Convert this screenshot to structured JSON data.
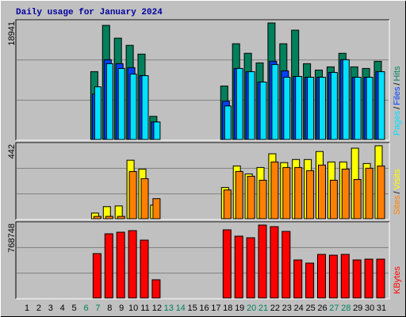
{
  "chart_data": [
    {
      "type": "bar",
      "title": "Daily usage for January 2024",
      "ylim": [
        0,
        18941
      ],
      "yticks": [
        18941
      ],
      "separator": "/",
      "series": [
        {
          "name": "Hits",
          "color": "#00805c",
          "values": [
            0,
            0,
            0,
            0,
            0,
            0,
            10790,
            18064,
            16056,
            14927,
            13547,
            3763,
            0,
            0,
            0,
            0,
            0,
            8530,
            15178,
            13673,
            12168,
            18440,
            15178,
            17311,
            12042,
            11039,
            11540,
            13673,
            11540,
            11290,
            12418
          ]
        },
        {
          "name": "Files",
          "color": "#0040ff",
          "values": [
            0,
            0,
            0,
            0,
            0,
            0,
            7276,
            12669,
            12042,
            11415,
            10161,
            2885,
            0,
            0,
            0,
            0,
            0,
            6147,
            11290,
            10788,
            9157,
            12419,
            10913,
            10035,
            9910,
            9910,
            10662,
            12669,
            9910,
            9910,
            10788
          ]
        },
        {
          "name": "Pages",
          "color": "#00e0ff",
          "values": [
            0,
            0,
            0,
            0,
            0,
            0,
            8404,
            12042,
            11290,
            10412,
            10161,
            2885,
            0,
            0,
            0,
            0,
            0,
            5394,
            11290,
            10788,
            9157,
            11917,
            9910,
            10035,
            9910,
            9910,
            10662,
            12669,
            9910,
            9910,
            10788
          ]
        }
      ]
    },
    {
      "type": "bar",
      "ylim": [
        0,
        442
      ],
      "yticks": [
        442
      ],
      "separator": "/",
      "series": [
        {
          "name": "Visits",
          "color": "#ffff00",
          "values": [
            0,
            0,
            0,
            0,
            0,
            0,
            37,
            74,
            78,
            341,
            290,
            83,
            0,
            0,
            0,
            0,
            0,
            184,
            308,
            262,
            299,
            378,
            327,
            345,
            345,
            391,
            331,
            331,
            410,
            322,
            424
          ]
        },
        {
          "name": "Sites",
          "color": "#ff8000",
          "values": [
            0,
            0,
            0,
            0,
            0,
            0,
            18,
            18,
            18,
            276,
            235,
            120,
            0,
            0,
            0,
            0,
            0,
            170,
            276,
            249,
            226,
            331,
            299,
            299,
            281,
            313,
            226,
            290,
            230,
            295,
            308
          ]
        }
      ]
    },
    {
      "type": "bar",
      "ylim": [
        0,
        768748
      ],
      "yticks": [
        768748
      ],
      "categories": [
        "1",
        "2",
        "3",
        "4",
        "5",
        "6",
        "7",
        "8",
        "9",
        "10",
        "11",
        "12",
        "13",
        "14",
        "15",
        "16",
        "17",
        "18",
        "19",
        "20",
        "21",
        "22",
        "23",
        "24",
        "25",
        "26",
        "27",
        "28",
        "29",
        "30",
        "31"
      ],
      "weekend_indices": [
        5,
        6,
        12,
        13,
        19,
        20,
        26,
        27
      ],
      "weekend_color": "#00805c",
      "series": [
        {
          "name": "KBytes",
          "color": "#ff0000",
          "values": [
            0,
            0,
            0,
            0,
            0,
            0,
            451725,
            649850,
            665700,
            681550,
            586450,
            190200,
            0,
            0,
            0,
            0,
            0,
            689475,
            626075,
            610225,
            737025,
            721175,
            673625,
            388325,
            356625,
            443800,
            435875,
            443800,
            388325,
            396250,
            396250
          ]
        }
      ]
    }
  ]
}
